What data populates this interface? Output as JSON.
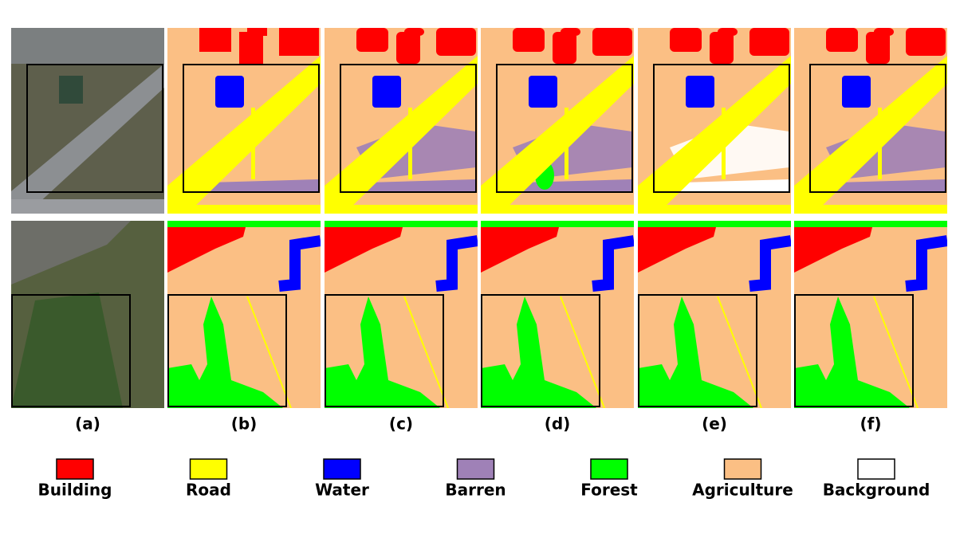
{
  "panels": [
    {
      "label": "(a)"
    },
    {
      "label": "(b)"
    },
    {
      "label": "(c)"
    },
    {
      "label": "(d)"
    },
    {
      "label": "(e)"
    },
    {
      "label": "(f)"
    }
  ],
  "legend": [
    {
      "label": "Building",
      "color": "#ff0000"
    },
    {
      "label": "Road",
      "color": "#ffff00"
    },
    {
      "label": "Water",
      "color": "#0000ff"
    },
    {
      "label": "Barren",
      "color": "#9f81b7"
    },
    {
      "label": "Forest",
      "color": "#00ff00"
    },
    {
      "label": "Agriculture",
      "color": "#fbbf84"
    },
    {
      "label": "Background",
      "color": "#ffffff"
    }
  ]
}
